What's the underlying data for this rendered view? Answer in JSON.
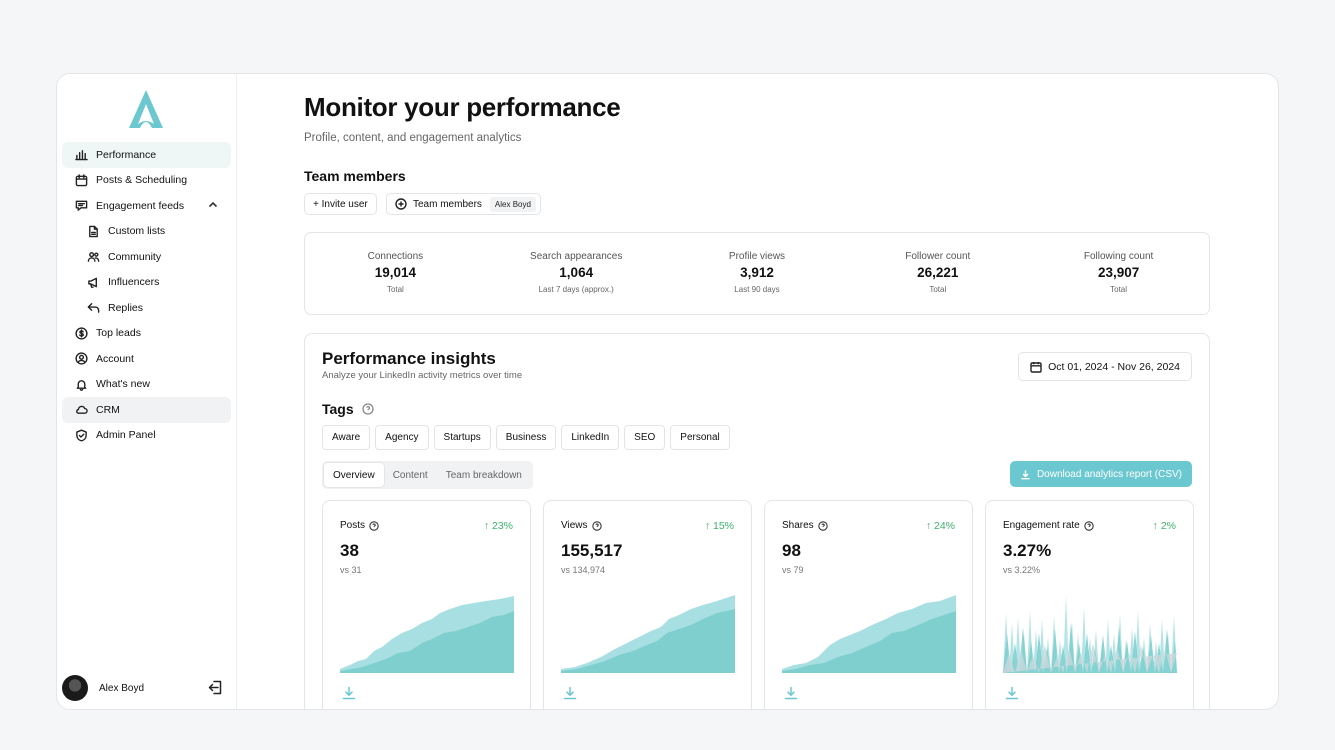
{
  "sidebar": {
    "items": [
      {
        "label": "Performance",
        "icon": "bar-chart-icon"
      },
      {
        "label": "Posts & Scheduling",
        "icon": "calendar-icon"
      },
      {
        "label": "Engagement feeds",
        "icon": "message-icon"
      },
      {
        "label": "Custom lists",
        "icon": "document-icon"
      },
      {
        "label": "Community",
        "icon": "people-icon"
      },
      {
        "label": "Influencers",
        "icon": "megaphone-icon"
      },
      {
        "label": "Replies",
        "icon": "reply-icon"
      },
      {
        "label": "Top leads",
        "icon": "dollar-icon"
      },
      {
        "label": "Account",
        "icon": "user-circle-icon"
      },
      {
        "label": "What's new",
        "icon": "bell-icon"
      },
      {
        "label": "CRM",
        "icon": "cloud-icon"
      },
      {
        "label": "Admin Panel",
        "icon": "shield-icon"
      }
    ],
    "user_name": "Alex Boyd"
  },
  "header": {
    "title": "Monitor your performance",
    "subtitle": "Profile, content, and engagement analytics"
  },
  "team": {
    "title": "Team members",
    "invite_label": "+ Invite user",
    "members_label": "Team members",
    "member_pill": "Alex Boyd"
  },
  "stats": [
    {
      "label": "Connections",
      "value": "19,014",
      "sub": "Total"
    },
    {
      "label": "Search appearances",
      "value": "1,064",
      "sub": "Last 7 days (approx.)"
    },
    {
      "label": "Profile views",
      "value": "3,912",
      "sub": "Last 90 days"
    },
    {
      "label": "Follower count",
      "value": "26,221",
      "sub": "Total"
    },
    {
      "label": "Following count",
      "value": "23,907",
      "sub": "Total"
    }
  ],
  "insights": {
    "title": "Performance insights",
    "subtitle": "Analyze your LinkedIn activity metrics over time",
    "date_range": "Oct 01, 2024 - Nov 26, 2024",
    "tags_title": "Tags",
    "tags": [
      "Aware",
      "Agency",
      "Startups",
      "Business",
      "LinkedIn",
      "SEO",
      "Personal"
    ],
    "tabs": [
      "Overview",
      "Content",
      "Team breakdown"
    ],
    "download_label": "Download analytics report (CSV)"
  },
  "cards": [
    {
      "label": "Posts",
      "delta": "↑ 23%",
      "value": "38",
      "vs": "vs 31"
    },
    {
      "label": "Views",
      "delta": "↑ 15%",
      "value": "155,517",
      "vs": "vs 134,974"
    },
    {
      "label": "Shares",
      "delta": "↑ 24%",
      "value": "98",
      "vs": "vs 79"
    },
    {
      "label": "Engagement rate",
      "delta": "↑ 2%",
      "value": "3.27%",
      "vs": "vs 3.22%"
    }
  ],
  "colors": {
    "accent": "#6cc8d0",
    "chart_light": "#a8dfe2",
    "chart_dark": "#7fcfcf",
    "positive": "#3bb36a"
  }
}
